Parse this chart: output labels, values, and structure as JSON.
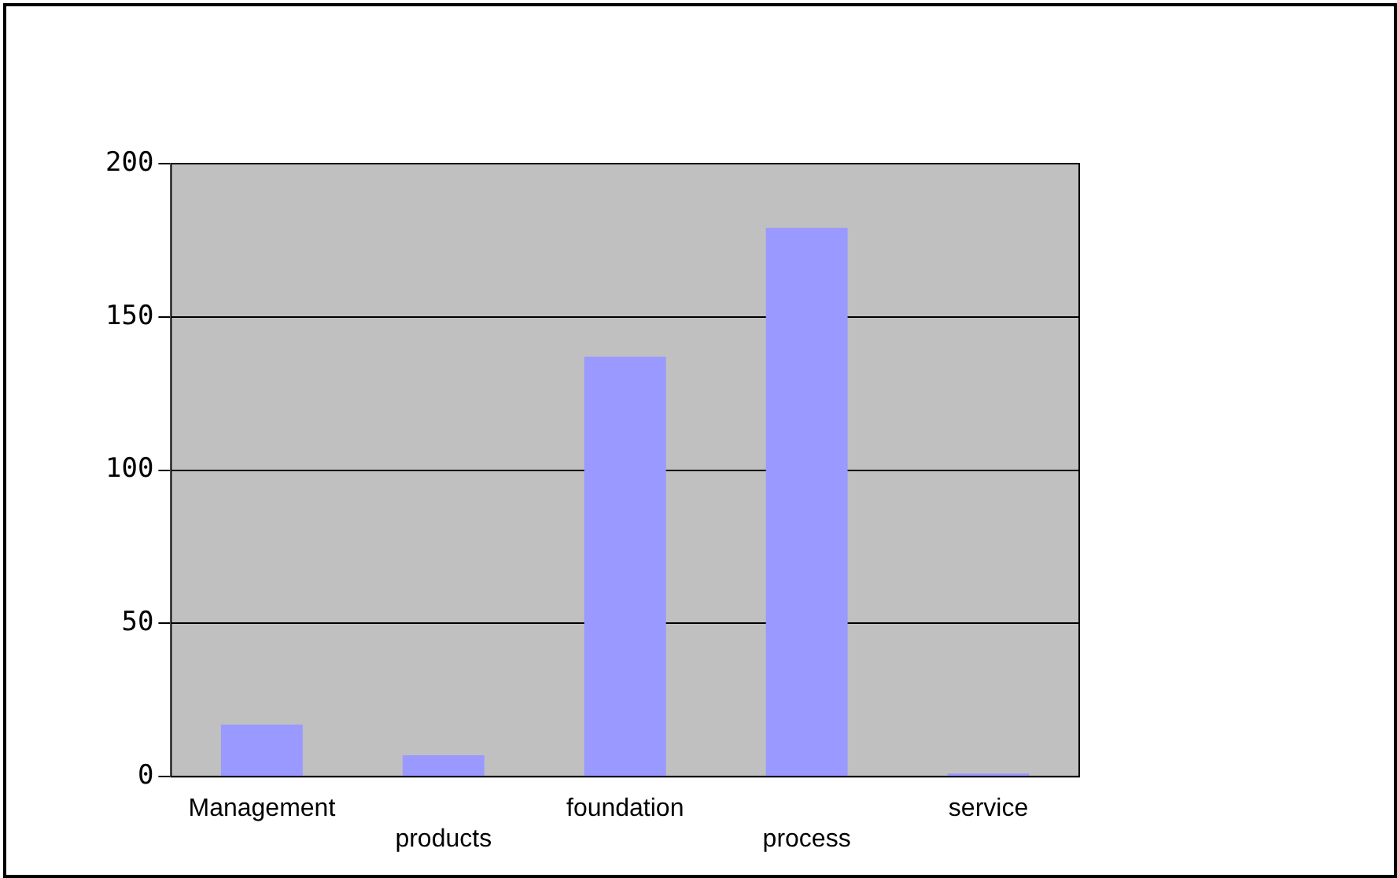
{
  "chart_data": {
    "type": "bar",
    "categories": [
      "Management",
      "products",
      "foundation",
      "process",
      "service"
    ],
    "values": [
      17,
      7,
      137,
      179,
      1
    ],
    "color": "#9999ff",
    "ylim": [
      0,
      200
    ],
    "yticks": [
      0,
      50,
      100,
      150,
      200
    ],
    "grid": "y",
    "legend": false
  }
}
